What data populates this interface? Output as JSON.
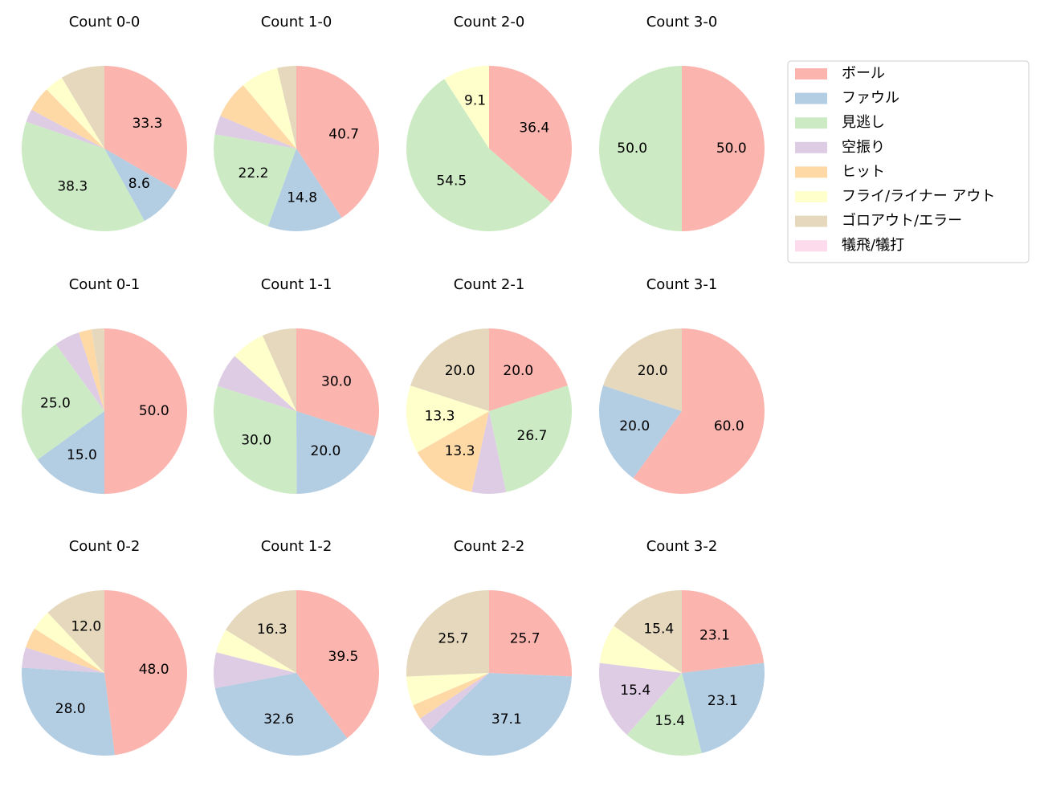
{
  "legend": {
    "labels": [
      "ボール",
      "ファウル",
      "見逃し",
      "空振り",
      "ヒット",
      "フライ/ライナー アウト",
      "ゴロアウト/エラー",
      "犠飛/犠打"
    ],
    "colors": [
      "#fbb4ae",
      "#b3cde3",
      "#ccebc5",
      "#decbe4",
      "#fed9a6",
      "#ffffcc",
      "#e5d8bd",
      "#fddaec"
    ]
  },
  "chart_data": [
    {
      "type": "pie",
      "title": "Count 0-0",
      "values": [
        33.3,
        8.6,
        38.3,
        2.5,
        4.9,
        3.7,
        8.6,
        0
      ],
      "value_labels": [
        "33.3",
        "8.6",
        "38.3",
        null,
        null,
        null,
        null,
        null
      ]
    },
    {
      "type": "pie",
      "title": "Count 1-0",
      "values": [
        40.7,
        14.8,
        22.2,
        3.7,
        7.4,
        7.4,
        3.7,
        0
      ],
      "value_labels": [
        "40.7",
        "14.8",
        "22.2",
        null,
        null,
        null,
        null,
        null
      ]
    },
    {
      "type": "pie",
      "title": "Count 2-0",
      "values": [
        36.4,
        0,
        54.5,
        0,
        0,
        9.1,
        0,
        0
      ],
      "value_labels": [
        "36.4",
        null,
        "54.5",
        null,
        null,
        "9.1",
        null,
        null
      ]
    },
    {
      "type": "pie",
      "title": "Count 3-0",
      "values": [
        50,
        0,
        50,
        0,
        0,
        0,
        0,
        0
      ],
      "value_labels": [
        "50.0",
        null,
        "50.0",
        null,
        null,
        null,
        null,
        null
      ]
    },
    {
      "type": "pie",
      "title": "Count 0-1",
      "values": [
        50,
        15,
        25,
        5,
        2.5,
        0,
        2.5,
        0
      ],
      "value_labels": [
        "50.0",
        "15.0",
        "25.0",
        null,
        null,
        null,
        null,
        null
      ]
    },
    {
      "type": "pie",
      "title": "Count 1-1",
      "values": [
        30,
        20,
        30,
        6.7,
        0,
        6.7,
        6.7,
        0
      ],
      "value_labels": [
        "30.0",
        "20.0",
        "30.0",
        null,
        null,
        null,
        null,
        null
      ]
    },
    {
      "type": "pie",
      "title": "Count 2-1",
      "values": [
        20,
        0,
        26.7,
        6.7,
        13.3,
        13.3,
        20,
        0
      ],
      "value_labels": [
        "20.0",
        null,
        "26.7",
        null,
        "13.3",
        "13.3",
        "20.0",
        null
      ]
    },
    {
      "type": "pie",
      "title": "Count 3-1",
      "values": [
        60,
        20,
        0,
        0,
        0,
        0,
        20,
        0
      ],
      "value_labels": [
        "60.0",
        "20.0",
        null,
        null,
        null,
        null,
        "20.0",
        null
      ]
    },
    {
      "type": "pie",
      "title": "Count 0-2",
      "values": [
        48,
        28,
        0,
        4,
        4,
        4,
        12,
        0
      ],
      "value_labels": [
        "48.0",
        "28.0",
        null,
        null,
        null,
        null,
        "12.0",
        null
      ]
    },
    {
      "type": "pie",
      "title": "Count 1-2",
      "values": [
        39.5,
        32.6,
        0,
        7,
        0,
        4.7,
        16.3,
        0
      ],
      "value_labels": [
        "39.5",
        "32.6",
        null,
        null,
        null,
        null,
        "16.3",
        null
      ]
    },
    {
      "type": "pie",
      "title": "Count 2-2",
      "values": [
        25.7,
        37.1,
        0,
        2.9,
        2.9,
        5.7,
        25.7,
        0
      ],
      "value_labels": [
        "25.7",
        "37.1",
        null,
        null,
        null,
        null,
        "25.7",
        null
      ]
    },
    {
      "type": "pie",
      "title": "Count 3-2",
      "values": [
        23.1,
        23.1,
        15.4,
        15.4,
        0,
        7.7,
        15.4,
        0
      ],
      "value_labels": [
        "23.1",
        "23.1",
        "15.4",
        "15.4",
        null,
        null,
        "15.4",
        null
      ]
    }
  ]
}
